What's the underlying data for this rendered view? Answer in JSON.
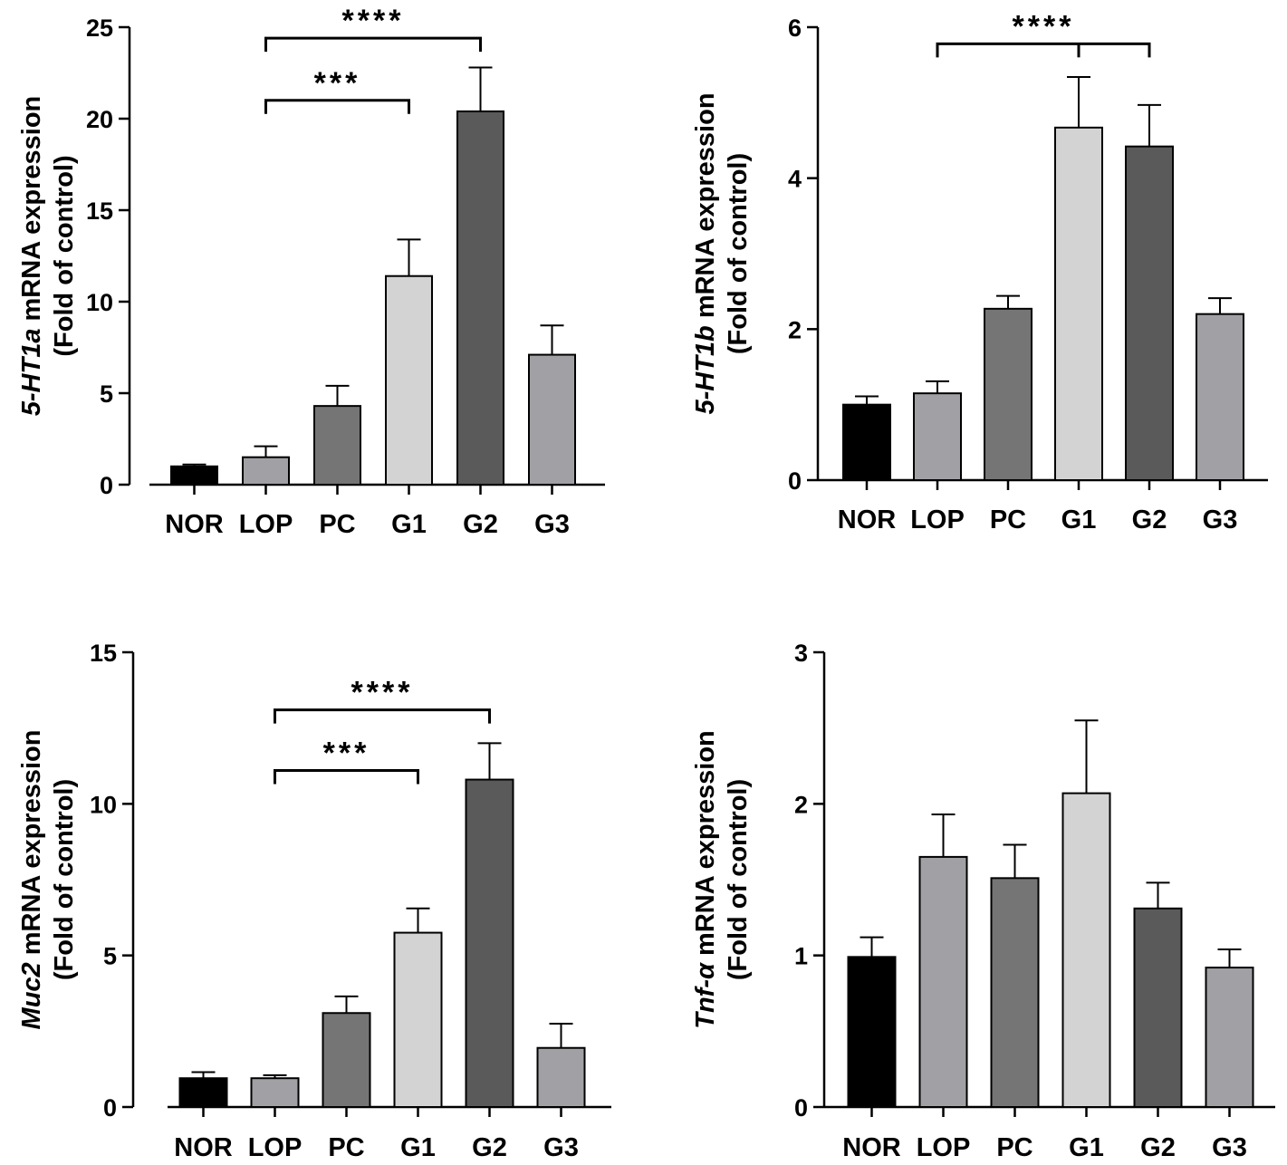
{
  "chart_data": [
    {
      "type": "bar",
      "panel": "top-left",
      "categories": [
        "NOR",
        "LOP",
        "PC",
        "G1",
        "G2",
        "G3"
      ],
      "values": [
        1.0,
        1.5,
        4.3,
        11.4,
        20.4,
        7.1
      ],
      "errors": [
        0.1,
        0.6,
        1.1,
        2.0,
        2.4,
        1.6
      ],
      "colors": [
        "#000000",
        "#a1a0a5",
        "#757575",
        "#d3d3d3",
        "#5a5a5a",
        "#a1a0a5"
      ],
      "ylim": [
        0,
        25
      ],
      "yticks": [
        "0",
        "5",
        "10",
        "15",
        "20",
        "25"
      ],
      "ylabel_gene": "5-HT1a",
      "ylabel_rest": " mRNA expression",
      "ylabel_line2": "(Fold of control)",
      "significance": [
        {
          "from": "LOP",
          "to": "G1",
          "label": "***",
          "level": 21
        },
        {
          "from": "LOP",
          "to": "G2",
          "label": "****",
          "level": 24.4
        }
      ]
    },
    {
      "type": "bar",
      "panel": "top-right",
      "categories": [
        "NOR",
        "LOP",
        "PC",
        "G1",
        "G2",
        "G3"
      ],
      "values": [
        1.0,
        1.15,
        2.27,
        4.67,
        4.42,
        2.2
      ],
      "errors": [
        0.11,
        0.16,
        0.17,
        0.67,
        0.55,
        0.21
      ],
      "colors": [
        "#000000",
        "#a1a0a5",
        "#757575",
        "#d3d3d3",
        "#5a5a5a",
        "#a1a0a5"
      ],
      "ylim": [
        0,
        6
      ],
      "yticks": [
        "0",
        "2",
        "4",
        "6"
      ],
      "ylabel_gene": "5-HT1b",
      "ylabel_rest": " mRNA expression",
      "ylabel_line2": "(Fold of control)",
      "significance": [
        {
          "from": "LOP",
          "to": "G2",
          "label": "****",
          "level": 5.78,
          "center_tick_at": "G1"
        }
      ]
    },
    {
      "type": "bar",
      "panel": "bottom-left",
      "categories": [
        "NOR",
        "LOP",
        "PC",
        "G1",
        "G2",
        "G3"
      ],
      "values": [
        0.95,
        0.95,
        3.1,
        5.75,
        10.8,
        1.95
      ],
      "errors": [
        0.2,
        0.1,
        0.55,
        0.8,
        1.2,
        0.8
      ],
      "colors": [
        "#000000",
        "#a1a0a5",
        "#757575",
        "#d3d3d3",
        "#5a5a5a",
        "#a1a0a5"
      ],
      "ylim": [
        0,
        15
      ],
      "yticks": [
        "0",
        "5",
        "10",
        "15"
      ],
      "ylabel_gene": "Muc2",
      "ylabel_rest": " mRNA expression",
      "ylabel_line2": "(Fold of control)",
      "significance": [
        {
          "from": "LOP",
          "to": "G1",
          "label": "***",
          "level": 11.1
        },
        {
          "from": "LOP",
          "to": "G2",
          "label": "****",
          "level": 13.1
        }
      ]
    },
    {
      "type": "bar",
      "panel": "bottom-right",
      "categories": [
        "NOR",
        "LOP",
        "PC",
        "G1",
        "G2",
        "G3"
      ],
      "values": [
        0.99,
        1.65,
        1.51,
        2.07,
        1.31,
        0.92
      ],
      "errors": [
        0.13,
        0.28,
        0.22,
        0.48,
        0.17,
        0.12
      ],
      "colors": [
        "#000000",
        "#a1a0a5",
        "#757575",
        "#d3d3d3",
        "#5a5a5a",
        "#a1a0a5"
      ],
      "ylim": [
        0,
        3
      ],
      "yticks": [
        "0",
        "1",
        "2",
        "3"
      ],
      "ylabel_gene": "Tnf-α",
      "ylabel_rest": " mRNA expression",
      "ylabel_line2": "(Fold of control)",
      "significance": []
    }
  ]
}
